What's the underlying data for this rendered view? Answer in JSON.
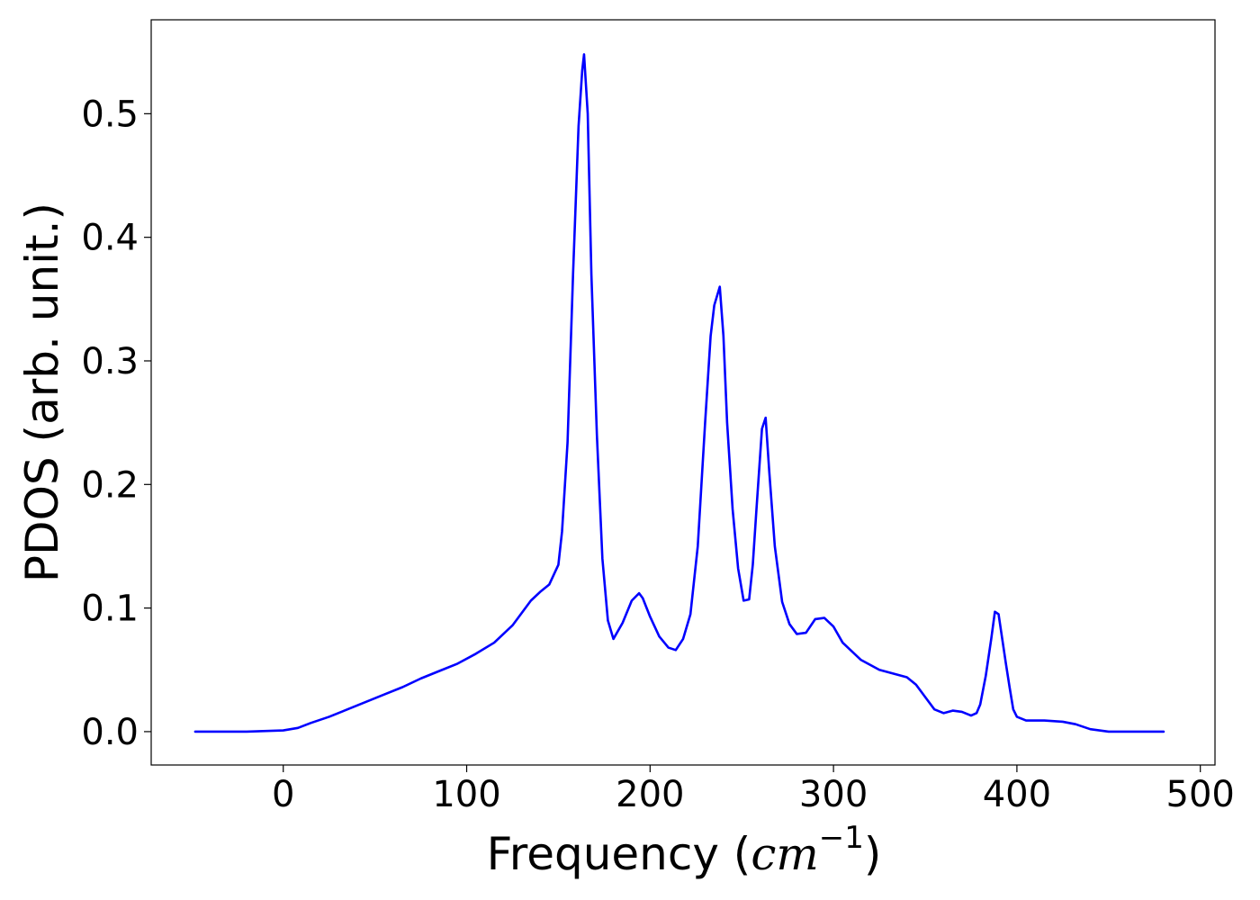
{
  "chart_data": {
    "type": "line",
    "title": "",
    "xlabel": {
      "prefix": "Frequency (",
      "unit_base": "cm",
      "unit_exponent": "−1",
      "suffix": ")"
    },
    "ylabel": "PDOS (arb. unit.)",
    "xlim": [
      -72,
      508
    ],
    "ylim": [
      -0.027,
      0.576
    ],
    "xticks": [
      0,
      100,
      200,
      300,
      400,
      500
    ],
    "xtick_labels": [
      "0",
      "100",
      "200",
      "300",
      "400",
      "500"
    ],
    "yticks": [
      0.0,
      0.1,
      0.2,
      0.3,
      0.4,
      0.5
    ],
    "ytick_labels": [
      "0.0",
      "0.1",
      "0.2",
      "0.3",
      "0.4",
      "0.5"
    ],
    "grid": false,
    "legend": "none",
    "series": [
      {
        "color": "#0000ff",
        "x": [
          -48,
          -20,
          0,
          8,
          15,
          25,
          35,
          45,
          55,
          65,
          75,
          85,
          95,
          105,
          115,
          125,
          135,
          140,
          145,
          150,
          152,
          155,
          158,
          161,
          163,
          164,
          166,
          168,
          171,
          174,
          177,
          180,
          185,
          190,
          194,
          196,
          200,
          205,
          210,
          214,
          218,
          222,
          226,
          230,
          233,
          235,
          238,
          240,
          242,
          245,
          248,
          251,
          254,
          256,
          258,
          261,
          263,
          265,
          268,
          272,
          276,
          280,
          285,
          290,
          295,
          300,
          305,
          315,
          325,
          335,
          340,
          345,
          350,
          355,
          360,
          365,
          370,
          375,
          378,
          380,
          383,
          386,
          388,
          390,
          392,
          394,
          396,
          398,
          400,
          405,
          415,
          425,
          432,
          440,
          450,
          480
        ],
        "y": [
          0.0,
          0.0,
          0.001,
          0.003,
          0.007,
          0.012,
          0.018,
          0.024,
          0.03,
          0.036,
          0.043,
          0.049,
          0.055,
          0.063,
          0.072,
          0.086,
          0.106,
          0.113,
          0.119,
          0.135,
          0.162,
          0.234,
          0.37,
          0.49,
          0.535,
          0.548,
          0.5,
          0.37,
          0.24,
          0.14,
          0.09,
          0.075,
          0.088,
          0.106,
          0.112,
          0.108,
          0.093,
          0.077,
          0.068,
          0.066,
          0.075,
          0.095,
          0.15,
          0.25,
          0.32,
          0.345,
          0.36,
          0.32,
          0.25,
          0.18,
          0.132,
          0.106,
          0.107,
          0.135,
          0.18,
          0.245,
          0.254,
          0.21,
          0.15,
          0.105,
          0.087,
          0.079,
          0.08,
          0.091,
          0.092,
          0.085,
          0.072,
          0.058,
          0.05,
          0.046,
          0.044,
          0.038,
          0.028,
          0.018,
          0.015,
          0.017,
          0.016,
          0.013,
          0.015,
          0.022,
          0.045,
          0.075,
          0.097,
          0.095,
          0.075,
          0.055,
          0.036,
          0.018,
          0.012,
          0.009,
          0.009,
          0.008,
          0.006,
          0.002,
          0.0,
          0.0
        ]
      }
    ]
  }
}
